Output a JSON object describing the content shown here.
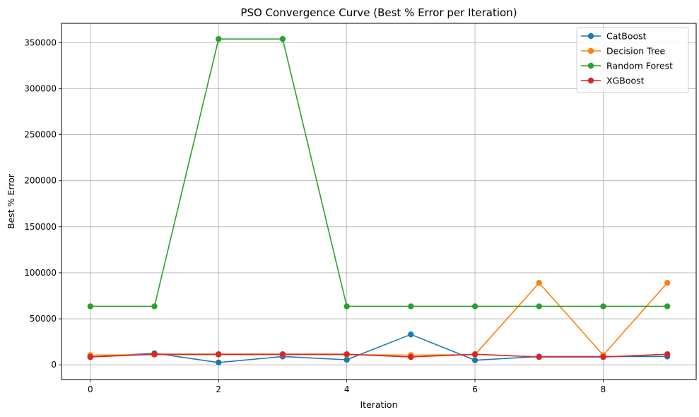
{
  "chart_data": {
    "type": "line",
    "title": "PSO Convergence Curve (Best % Error per Iteration)",
    "xlabel": "Iteration",
    "ylabel": "Best % Error",
    "x": [
      0,
      1,
      2,
      3,
      4,
      5,
      6,
      7,
      8,
      9
    ],
    "xlim": [
      -0.45,
      9.45
    ],
    "ylim": [
      -16000,
      371000
    ],
    "xticks": [
      0,
      2,
      4,
      6,
      8
    ],
    "yticks": [
      0,
      50000,
      100000,
      150000,
      200000,
      250000,
      300000,
      350000
    ],
    "grid": true,
    "legend_position": "top-right",
    "series": [
      {
        "name": "CatBoost",
        "color": "#1f77b4",
        "values": [
          8500,
          12500,
          2500,
          9000,
          5500,
          33000,
          5000,
          9000,
          9000,
          9000
        ]
      },
      {
        "name": "Decision Tree",
        "color": "#ff7f0e",
        "values": [
          10500,
          11000,
          11000,
          11000,
          11000,
          10500,
          11000,
          89000,
          10500,
          89000
        ]
      },
      {
        "name": "Random Forest",
        "color": "#2ca02c",
        "values": [
          63500,
          63500,
          354000,
          354000,
          63500,
          63500,
          63500,
          63500,
          63500,
          63500
        ]
      },
      {
        "name": "XGBoost",
        "color": "#d62728",
        "values": [
          8500,
          11500,
          11500,
          11500,
          11500,
          8500,
          11500,
          8500,
          8500,
          11500
        ]
      }
    ]
  }
}
